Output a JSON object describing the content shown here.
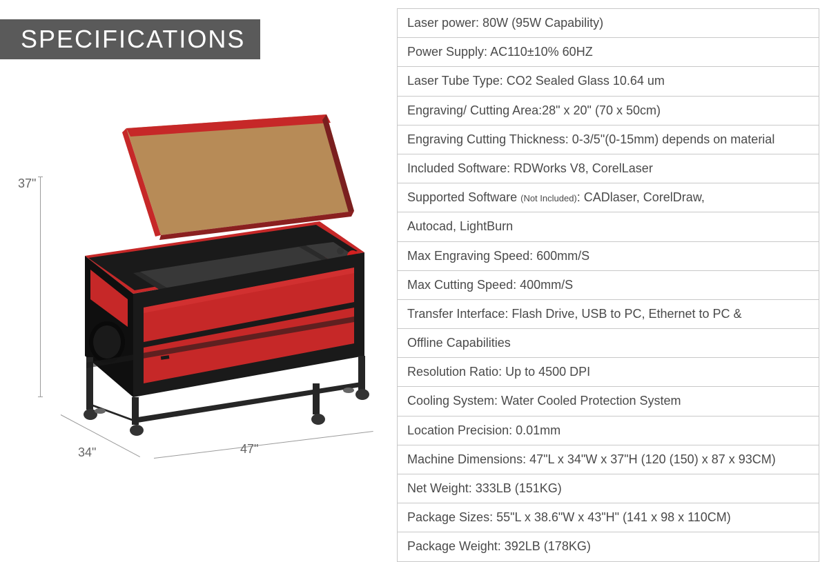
{
  "banner": {
    "title": "SPECIFICATIONS"
  },
  "dimensions": {
    "height": "37\"",
    "depth": "34\"",
    "width": "47\""
  },
  "machine_graphic": {
    "body_color": "#1a1a1a",
    "accent_color": "#c62828",
    "accent_color_light": "#d13030",
    "lid_translucent": "#a36a28",
    "lid_frame": "#c62828",
    "frame_color": "#262626",
    "caster_color": "#333333",
    "button_red": "#d32020",
    "button_dark": "#333333",
    "panel_inner": "#2a2a2a"
  },
  "spec_colors": {
    "border": "#c8c8c8",
    "text": "#4a4a4a",
    "banner_bg": "#5a5a5a",
    "banner_text": "#ffffff",
    "dim_line": "#9a9a9a"
  },
  "specs": [
    {
      "text": "Laser power: 80W   (95W Capability)"
    },
    {
      "text": "Power Supply: AC110±10% 60HZ"
    },
    {
      "text": "Laser Tube Type: CO2 Sealed Glass 10.64 um"
    },
    {
      "text": "Engraving/ Cutting Area:28\" x 20\" (70 x 50cm)"
    },
    {
      "text": "Engraving Cutting Thickness: 0-3/5\"(0-15mm) depends on material"
    },
    {
      "text": "Included Software: RDWorks V8, CorelLaser"
    },
    {
      "html": "Supported Software <span class=\"small\">(Not Included)</span>: CADlaser, CorelDraw,"
    },
    {
      "text": "Autocad, LightBurn"
    },
    {
      "text": "Max Engraving Speed: 600mm/S"
    },
    {
      "text": "Max Cutting Speed: 400mm/S"
    },
    {
      "text": "Transfer Interface: Flash Drive, USB to PC, Ethernet to PC &"
    },
    {
      "text": "Offline Capabilities"
    },
    {
      "text": "Resolution Ratio: Up to 4500 DPI"
    },
    {
      "text": "Cooling System: Water Cooled Protection System"
    },
    {
      "text": "Location Precision: 0.01mm"
    },
    {
      "text": "Machine Dimensions: 47\"L x 34\"W x  37\"H (120 (150) x 87 x 93CM)"
    },
    {
      "text": "Net Weight:   333LB (151KG)"
    },
    {
      "text": "Package Sizes: 55\"L x 38.6\"W x 43\"H\" (141 x 98 x 110CM)"
    },
    {
      "text": "Package Weight: 392LB (178KG)"
    }
  ]
}
